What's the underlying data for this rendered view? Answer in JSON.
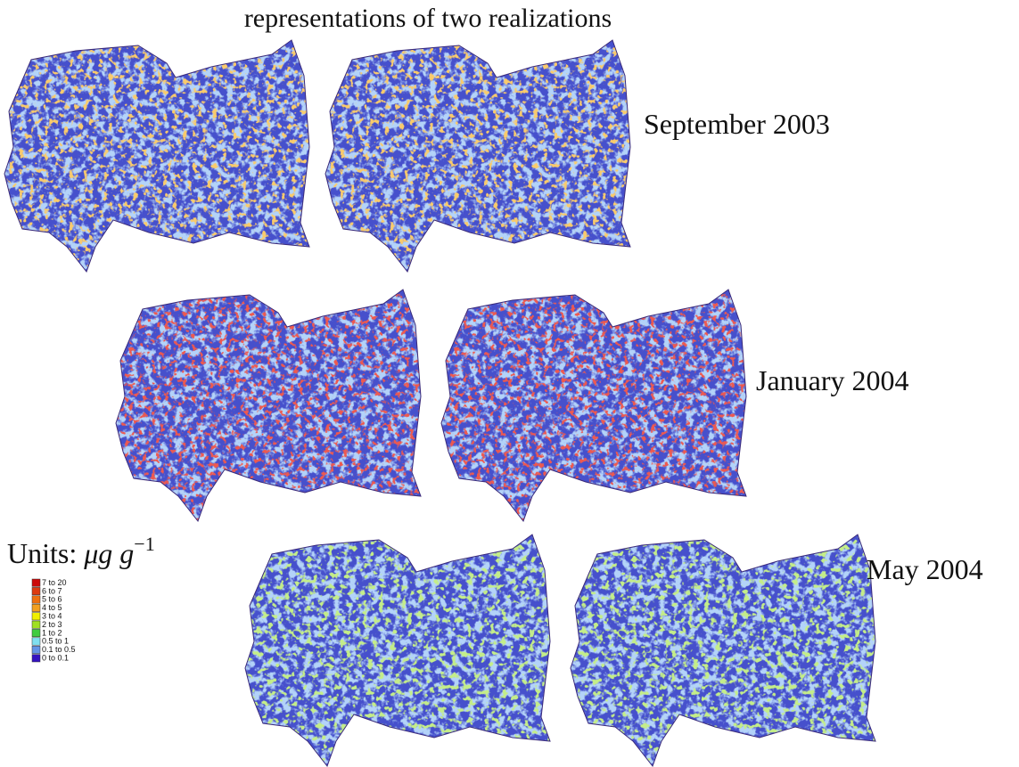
{
  "title": "representations of two realizations",
  "rows": [
    {
      "label": "September 2003"
    },
    {
      "label": "January 2004"
    },
    {
      "label": "May 2004"
    }
  ],
  "units": {
    "label": "Units:",
    "symbol": "μg g",
    "exponent": "−1"
  },
  "legend": [
    {
      "label": "7 to 20",
      "color": "#cc0a0a"
    },
    {
      "label": "6 to 7",
      "color": "#dd3a10"
    },
    {
      "label": "5 to 6",
      "color": "#ee7010"
    },
    {
      "label": "4 to 5",
      "color": "#f2a020"
    },
    {
      "label": "3 to 4",
      "color": "#f0f000"
    },
    {
      "label": "2 to 3",
      "color": "#a0e020"
    },
    {
      "label": "1 to 2",
      "color": "#40cc40"
    },
    {
      "label": "0.5 to 1",
      "color": "#80e0f0"
    },
    {
      "label": "0.1 to 0.5",
      "color": "#6494e6"
    },
    {
      "label": "0 to 0.1",
      "color": "#3412c0"
    }
  ]
}
